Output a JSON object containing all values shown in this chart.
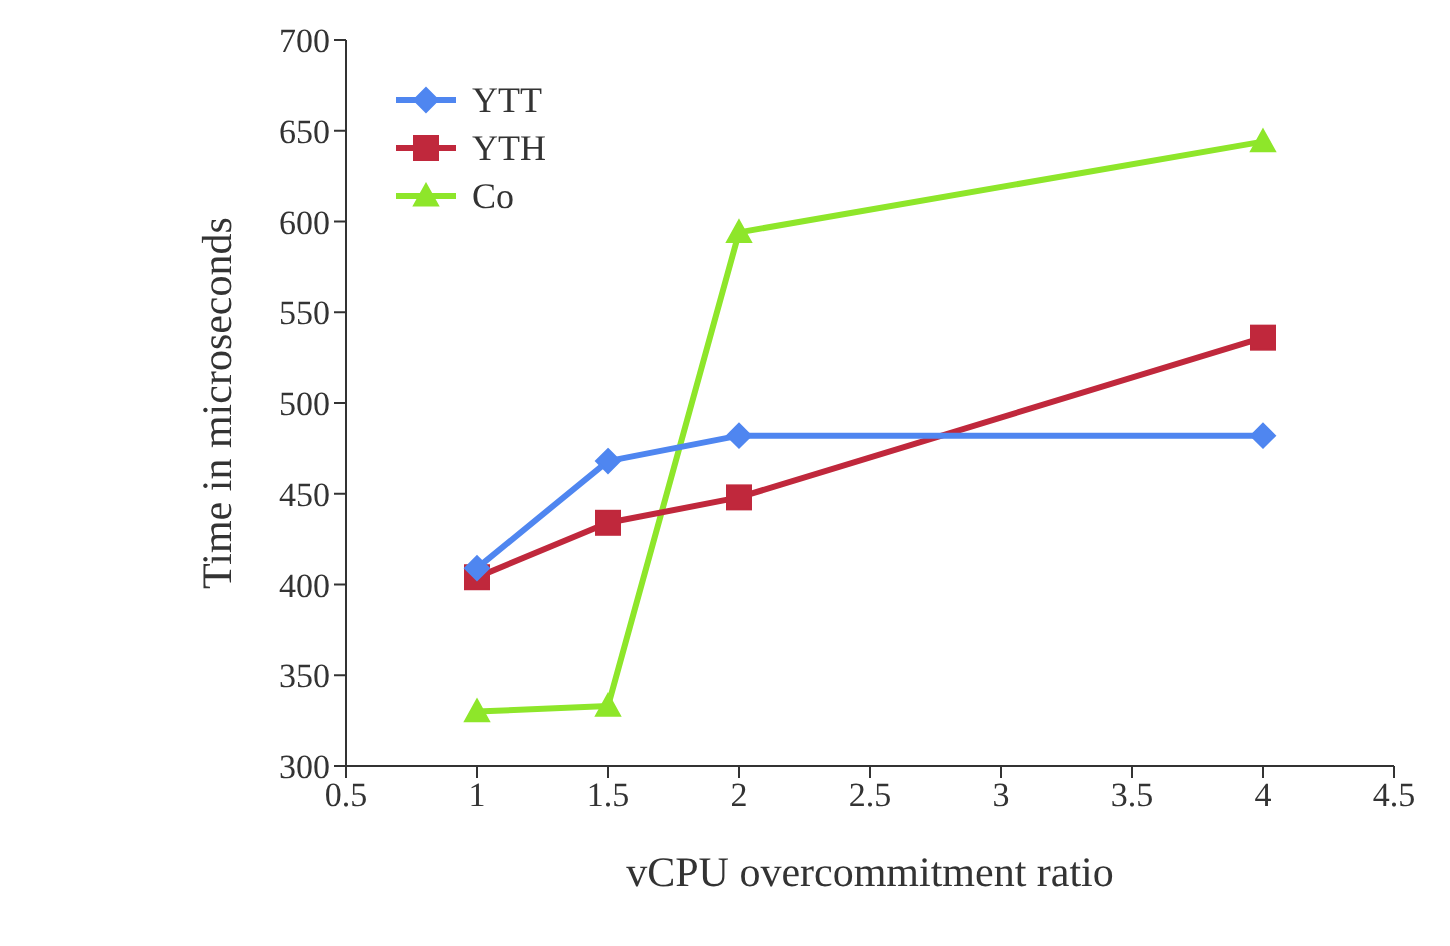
{
  "chart_data": {
    "type": "line",
    "xlabel": "vCPU overcommitment ratio",
    "ylabel": "Time in microseconds",
    "x": [
      1,
      1.5,
      2,
      4
    ],
    "series": [
      {
        "name": "YTT",
        "color": "#4f86f0",
        "marker": "diamond",
        "values": [
          409,
          468,
          482,
          482
        ]
      },
      {
        "name": "YTH",
        "color": "#c0283c",
        "marker": "square",
        "values": [
          404,
          434,
          448,
          536
        ]
      },
      {
        "name": "Co",
        "color": "#8ee62a",
        "marker": "triangle",
        "values": [
          330,
          333,
          594,
          644
        ]
      }
    ],
    "xlim": [
      0.5,
      4.5
    ],
    "xticks": [
      0.5,
      1,
      1.5,
      2,
      2.5,
      3,
      3.5,
      4,
      4.5
    ],
    "ylim": [
      300,
      700
    ],
    "yticks": [
      300,
      350,
      400,
      450,
      500,
      550,
      600,
      650,
      700
    ],
    "grid": false,
    "legend": "top left",
    "line_style": "solid"
  }
}
